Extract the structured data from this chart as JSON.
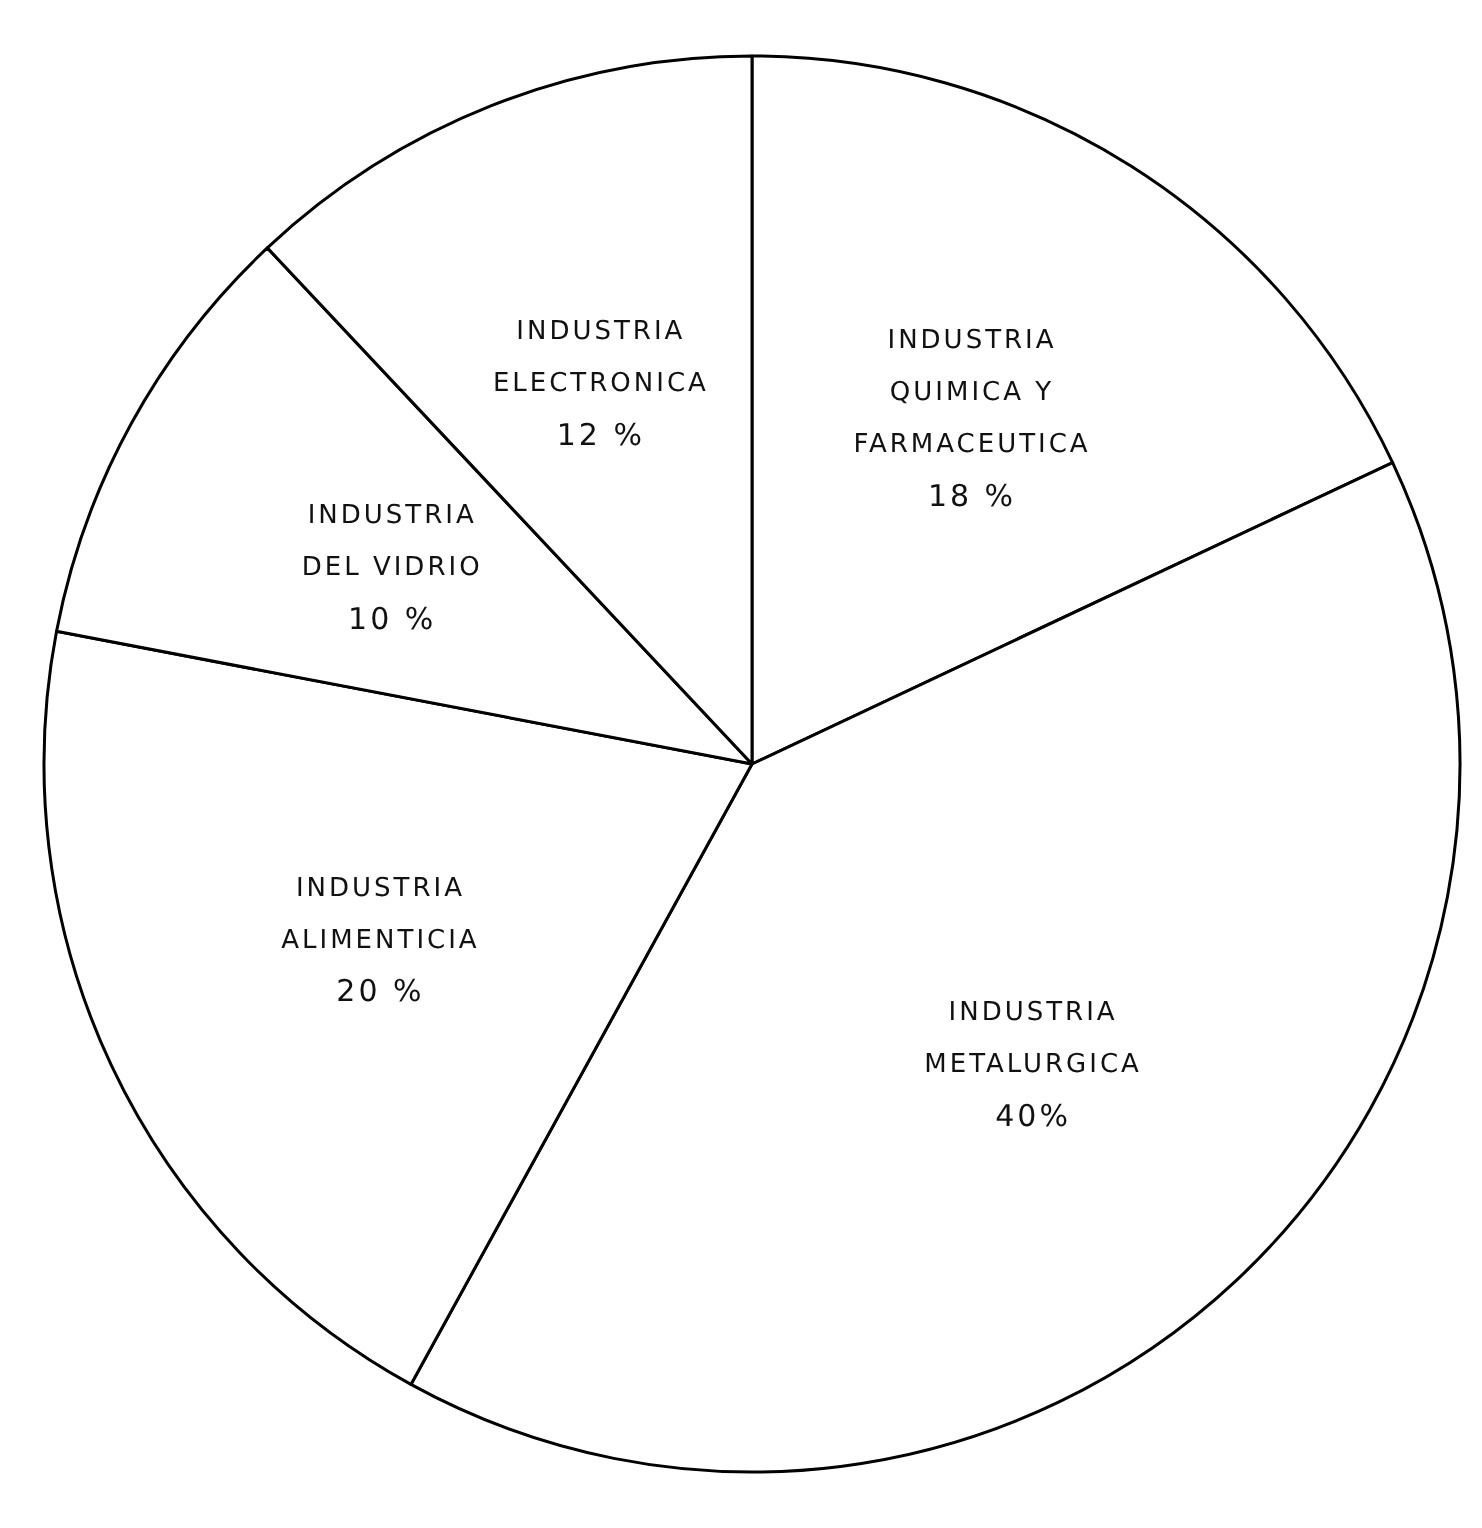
{
  "chart_data": {
    "type": "pie",
    "categories": [
      "INDUSTRIA QUIMICA Y FARMACEUTICA",
      "INDUSTRIA METALURGICA",
      "INDUSTRIA ALIMENTICIA",
      "INDUSTRIA DEL VIDRIO",
      "INDUSTRIA ELECTRONICA"
    ],
    "values": [
      18,
      40,
      20,
      10,
      12
    ],
    "value_labels": [
      "18 %",
      "40%",
      "20 %",
      "10 %",
      "12 %"
    ],
    "colors": [
      "#ffffff",
      "#ffffff",
      "#ffffff",
      "#ffffff",
      "#ffffff"
    ]
  }
}
